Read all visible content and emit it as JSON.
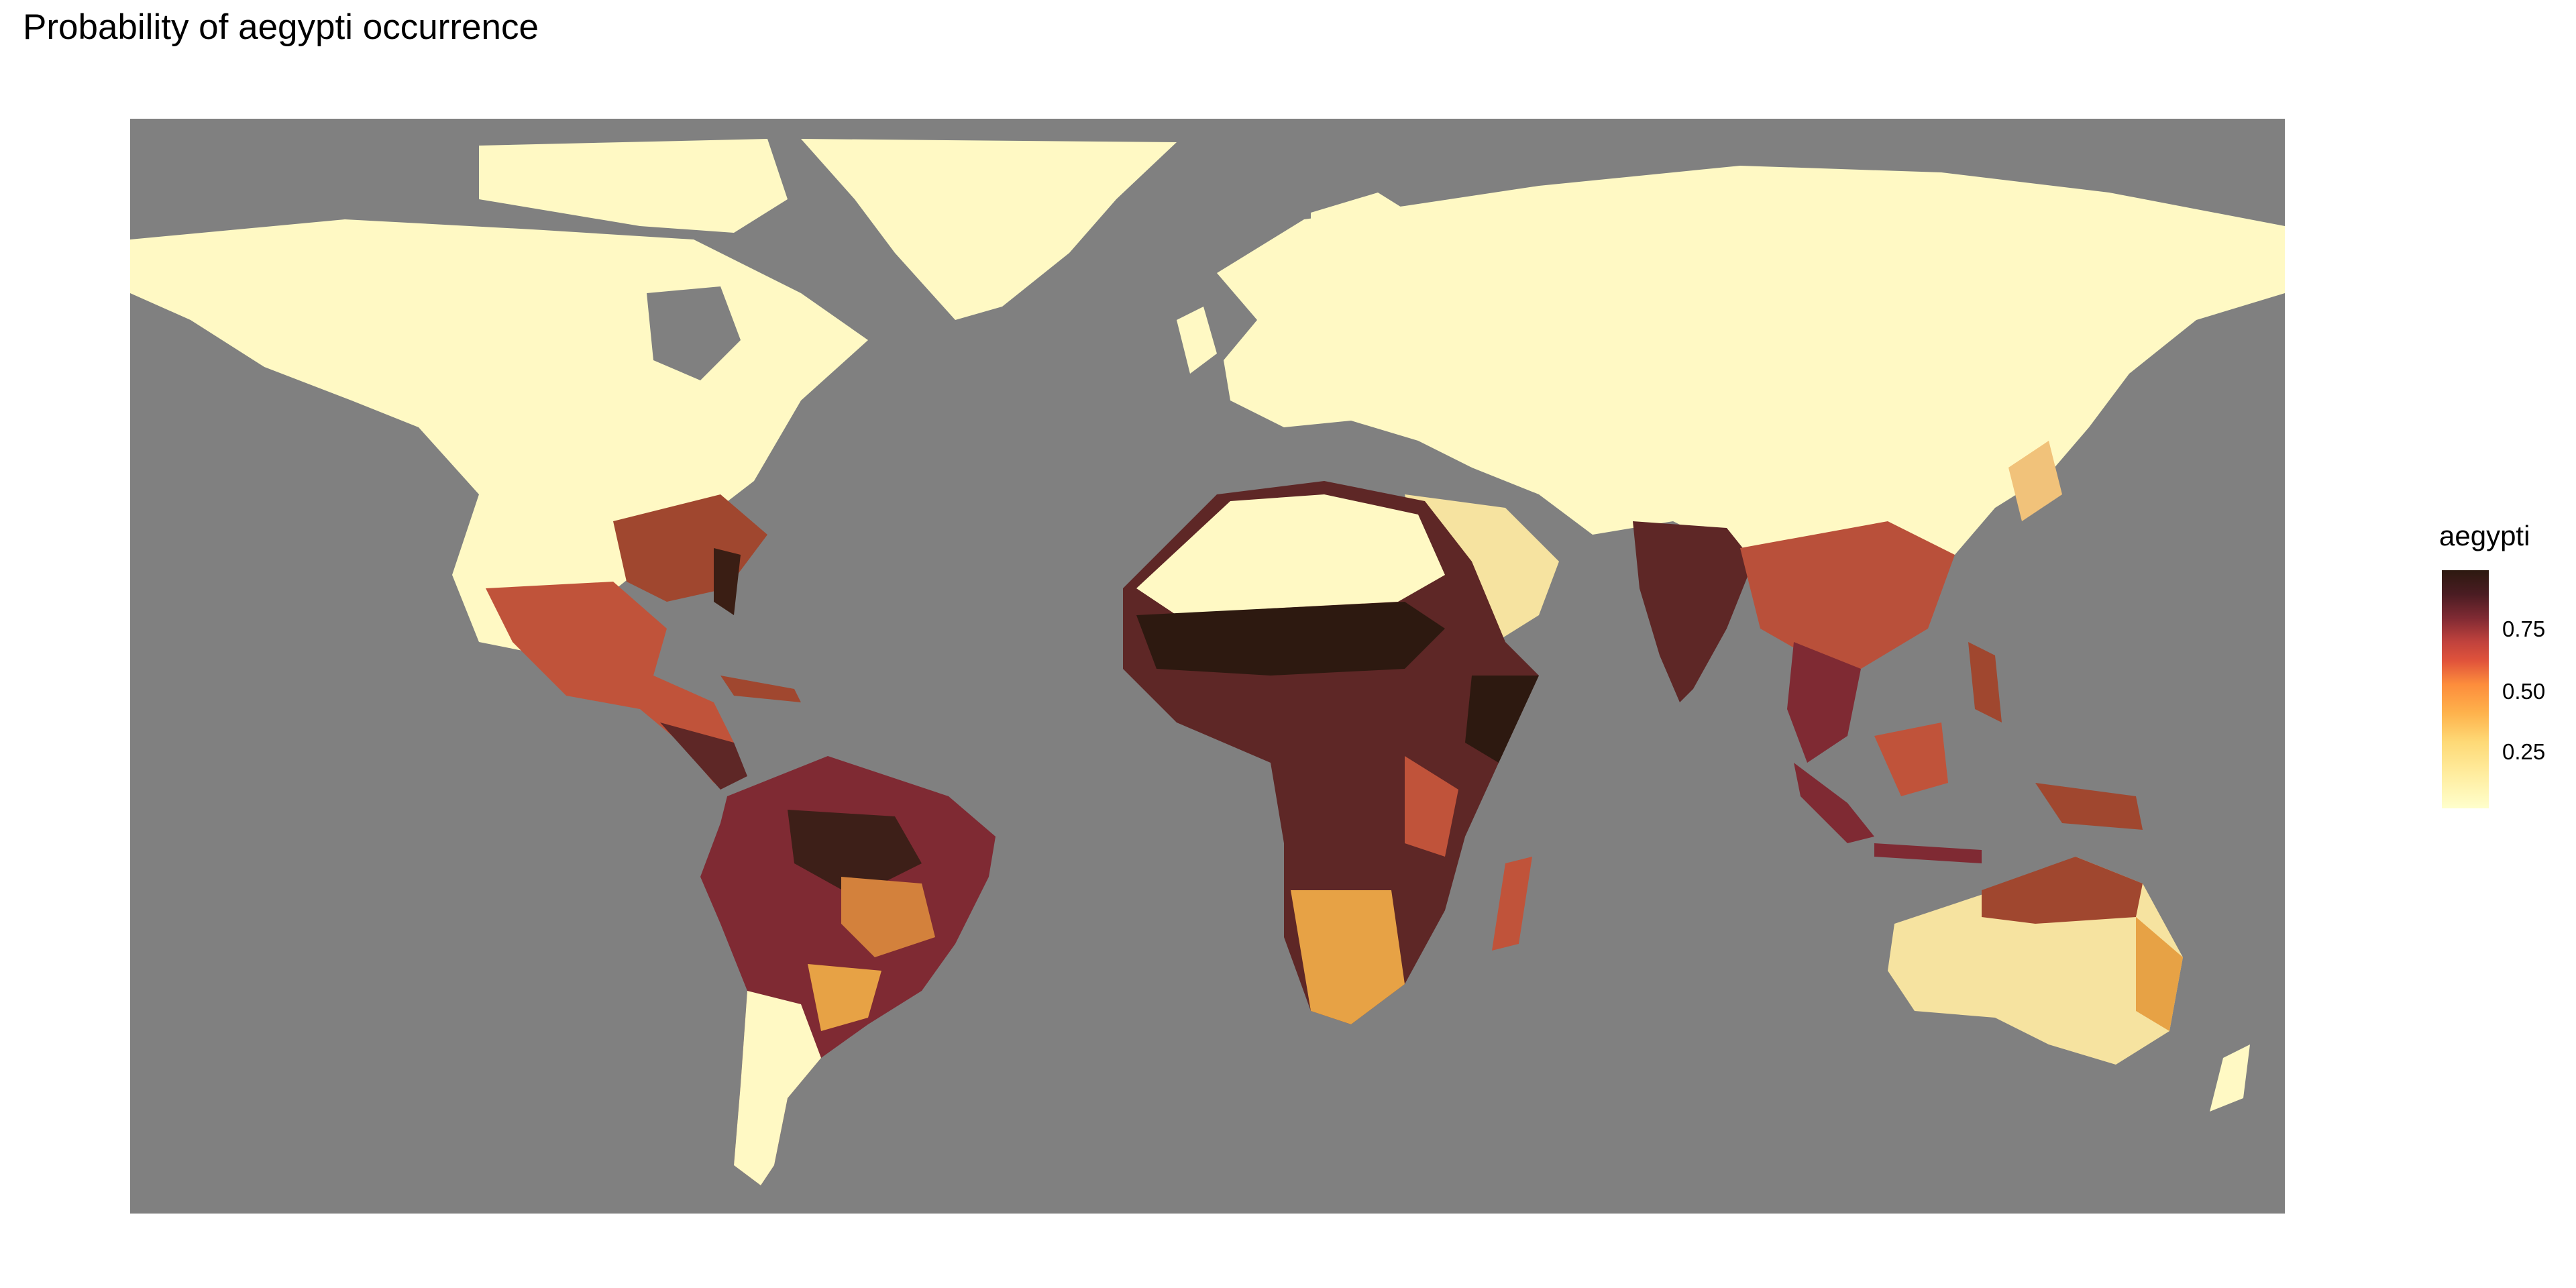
{
  "title": "Probability of aegypti occurrence",
  "map": {
    "background_color": "#808080",
    "palette": [
      "#ffffcc",
      "#fed976",
      "#fd8d3c",
      "#c0423d",
      "#7f2a33",
      "#2d1910"
    ]
  },
  "legend": {
    "title": "aegypti",
    "range": [
      0,
      1
    ],
    "ticks": [
      {
        "value": 0.25,
        "label": "0.25"
      },
      {
        "value": 0.5,
        "label": "0.50"
      },
      {
        "value": 0.75,
        "label": "0.75"
      }
    ]
  }
}
